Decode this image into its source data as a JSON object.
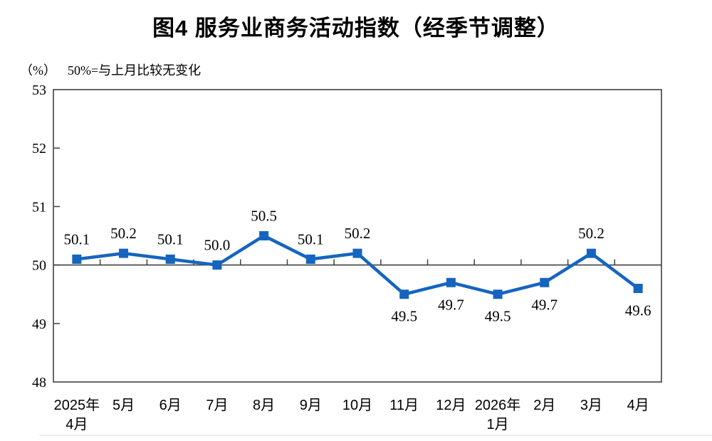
{
  "chart_data": {
    "type": "line",
    "title": "图4 服务业商务活动指数（经季节调整）",
    "unit_label": "（%）",
    "note": "50%=与上月比较无变化",
    "categories": [
      [
        "2025年",
        "4月"
      ],
      [
        "5月"
      ],
      [
        "6月"
      ],
      [
        "7月"
      ],
      [
        "8月"
      ],
      [
        "9月"
      ],
      [
        "10月"
      ],
      [
        "11月"
      ],
      [
        "12月"
      ],
      [
        "2026年",
        "1月"
      ],
      [
        "2月"
      ],
      [
        "3月"
      ],
      [
        "4月"
      ]
    ],
    "values": [
      50.1,
      50.2,
      50.1,
      50.0,
      50.5,
      50.1,
      50.2,
      49.5,
      49.7,
      49.5,
      49.7,
      50.2,
      49.6
    ],
    "point_labels": [
      "50.1",
      "50.2",
      "50.1",
      "50.0",
      "50.5",
      "50.1",
      "50.2",
      "49.5",
      "49.7",
      "49.5",
      "49.7",
      "50.2",
      "49.6"
    ],
    "ylim": [
      48,
      53
    ],
    "yticks": [
      48,
      49,
      50,
      51,
      52,
      53
    ],
    "baseline": 50,
    "grid": false,
    "legend": "none",
    "line_color": "#1565C0",
    "axis_color": "#404040",
    "bottom_rule_color": "#d9d9d9"
  }
}
